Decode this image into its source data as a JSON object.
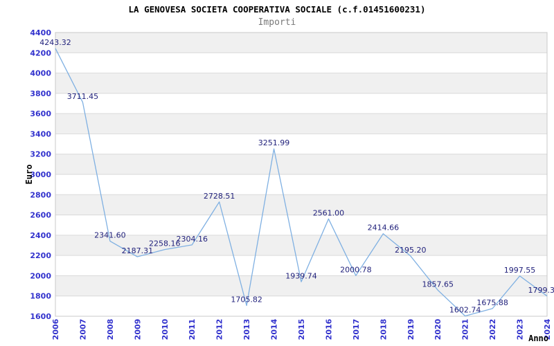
{
  "chart_data": {
    "type": "line",
    "title": "LA GENOVESA SOCIETA COOPERATIVA SOCIALE (c.f.01451600231)",
    "subtitle": "Importi",
    "xlabel": "Anno",
    "ylabel": "Euro",
    "categories": [
      "2006",
      "2007",
      "2008",
      "2009",
      "2010",
      "2011",
      "2012",
      "2013",
      "2014",
      "2015",
      "2016",
      "2017",
      "2018",
      "2019",
      "2020",
      "2021",
      "2022",
      "2023",
      "2024"
    ],
    "values": [
      4243.32,
      3711.45,
      2341.6,
      2187.31,
      2258.16,
      2304.16,
      2728.51,
      1705.82,
      3251.99,
      1939.74,
      2561.0,
      2000.78,
      2414.66,
      2195.2,
      1857.65,
      1602.74,
      1675.88,
      1997.55,
      1799.3
    ],
    "point_labels": [
      "4243.32",
      "3711.45",
      "2341.60",
      "2187.31",
      "2258.16",
      "2304.16",
      "2728.51",
      "1705.82",
      "3251.99",
      "1939.74",
      "2561.00",
      "2000.78",
      "2414.66",
      "2195.20",
      "1857.65",
      "1602.74",
      "1675.88",
      "1997.55",
      "1799.3"
    ],
    "ylim": [
      1600,
      4400
    ],
    "ytick_step": 200,
    "yticks": [
      1600,
      1800,
      2000,
      2200,
      2400,
      2600,
      2800,
      3000,
      3200,
      3400,
      3600,
      3800,
      4000,
      4200,
      4400
    ],
    "grid": true,
    "legend": "none",
    "band_pattern": "alternating-horizontal",
    "colors": {
      "line": "#7fb0e2",
      "tick_label": "#3232cd",
      "data_label": "#22227c",
      "band": "#f0f0f0",
      "gridline": "#d9d9d9",
      "plot_border": "#c8c8c8",
      "title": "#000000",
      "subtitle": "#787878",
      "axis_title": "#000000"
    }
  }
}
